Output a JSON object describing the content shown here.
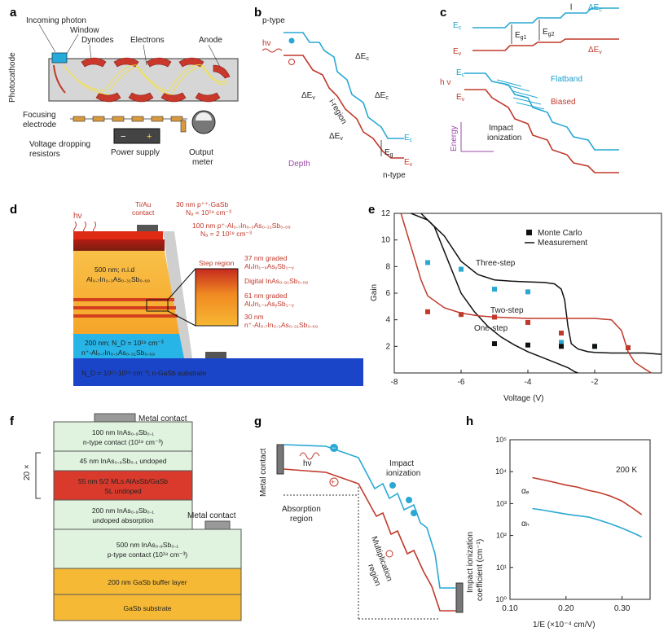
{
  "panels": {
    "a": {
      "label": "a",
      "photocathode": "Photocathode",
      "incoming_photon": "Incoming photon",
      "window": "Window",
      "dynodes": "Dynodes",
      "electrons": "Electrons",
      "anode": "Anode",
      "focusing_electrode": "Focusing electrode",
      "voltage_dropping_resistors": "Voltage dropping resistors",
      "power_supply": "Power supply",
      "output_meter": "Output meter",
      "minus": "−",
      "plus": "+"
    },
    "b": {
      "label": "b",
      "p_type": "p-type",
      "hv": "hν",
      "delta_ec": "ΔE",
      "delta_ec_sub": "c",
      "delta_ev": "ΔE",
      "delta_ev_sub": "v",
      "i_region": "i-region",
      "ec": "E",
      "ec_sub": "c",
      "ev": "E",
      "ev_sub": "v",
      "eg": "E",
      "eg_sub": "g",
      "depth": "Depth",
      "n_type": "n-type"
    },
    "c": {
      "label": "c",
      "ec": "E",
      "ec_sub": "c",
      "ev": "E",
      "ev_sub": "v",
      "eg1": "E",
      "eg1_sub": "g1",
      "eg2": "E",
      "eg2_sub": "g2",
      "l": "l",
      "delta_ec": "ΔE",
      "delta_ec_sub": "c",
      "delta_ev": "ΔE",
      "delta_ev_sub": "v",
      "hv": "h ν",
      "flatband": "Flatband",
      "biased": "Biased",
      "impact_ionization": "Impact ionization",
      "energy": "Energy"
    },
    "d": {
      "label": "d",
      "hv": "hν",
      "contact": "Ti/Au contact",
      "l1a": "30 nm p⁺⁺-GaSb",
      "l1b": "Nₐ = 10¹⁹ cm⁻³",
      "l2a": "100 nm p⁺-Al₀.₇In₀.₃As₀.₃₁Sb₀.₆₉",
      "l2b": "Nₐ = 2 10¹⁸ cm⁻³",
      "l3a": "500 nm; n.i.d",
      "l3b": "Al₀.₇In₀.₃As₀.₃₁Sb₀.₆₉",
      "step_region": "Step region",
      "s1a": "37 nm graded",
      "s1b": "AlₓIn₁₋ₓAsᵧSb₁₋ᵧ",
      "s2": "Digital InAs₀.₉₁Sb₀.₀₉",
      "s3a": "61 nm graded",
      "s3b": "AlₓIn₁₋ₓAsᵧSb₁₋ᵧ",
      "s4a": "30 nm",
      "s4b": "n⁺-Al₀.₇In₀.₃As₀.₃₁Sb₀.₆₉",
      "l4a": "200 nm; N_D = 10¹⁸ cm⁻³",
      "l4b": "n⁺-Al₀.₇In₀.₃As₀.₃₁Sb₀.₆₉",
      "l5": "N_D = 10¹⁷-10¹⁸ cm⁻³; n-GaSb substrate"
    },
    "f": {
      "label": "f",
      "metal_contact_top": "Metal contact",
      "metal_contact_side": "Metal contact",
      "repeat": "20 ×",
      "layers": [
        {
          "line1": "100 nm InAs₀.₉Sb₀.₁",
          "line2": "n-type contact (10¹⁸ cm⁻³)"
        },
        {
          "line1": "45 nm InAs₀.₉Sb₀.₁ undoped",
          "line2": ""
        },
        {
          "line1": "55 nm 5/2 MLs AlAsSb/GaSb",
          "line2": "SL undoped"
        },
        {
          "line1": "200 nm InAs₀.₉Sb₀.₁",
          "line2": "undoped absorption"
        },
        {
          "line1": "500 nm InAs₀.₉Sb₀.₁",
          "line2": "p-type contact (10¹⁸ cm⁻³)"
        },
        {
          "line1": "200 nm GaSb buffer layer",
          "line2": ""
        },
        {
          "line1": "GaSb substrate",
          "line2": ""
        }
      ]
    },
    "g": {
      "label": "g",
      "metal_contact": "Metal contact",
      "hv": "hν",
      "impact_ionization": "Impact ionization",
      "absorption_region": "Absorption region",
      "multiplication_region": "Multiplication region",
      "minus": "−",
      "plus": "+"
    }
  },
  "colors": {
    "cyan": "#29a8d3",
    "red": "#c0392b",
    "orange": "#f4a020",
    "layer_green": "#dff3df",
    "layer_red": "#d93a2b",
    "layer_gold": "#f6b935",
    "layer_blue": "#1b45c9",
    "layer_lightblue": "#27b4e6"
  },
  "chart_data": [
    {
      "panel": "e",
      "label": "e",
      "type": "line",
      "xlabel": "Voltage (V)",
      "ylabel": "Gain",
      "xlim": [
        -8,
        0
      ],
      "ylim": [
        0,
        12
      ],
      "xticks": [
        -8,
        -6,
        -4,
        -2
      ],
      "yticks": [
        2,
        4,
        6,
        8,
        10,
        12
      ],
      "legend": [
        "Monte Carlo",
        "Measurement"
      ],
      "legend_position": "top-right",
      "annotations": [
        "Three-step",
        "Two-step",
        "One-step"
      ],
      "series": [
        {
          "name": "Three-step",
          "kind": "measurement",
          "color": "#111111",
          "x": [
            -7.5,
            -7.0,
            -6.5,
            -6.0,
            -5.5,
            -5.0,
            -4.5,
            -4.0,
            -3.5,
            -3.2,
            -3.0,
            -2.9,
            -2.8,
            -2.7,
            -2.5,
            -2.2,
            -2.0,
            -1.5,
            -1.0,
            -0.5,
            0
          ],
          "y": [
            12,
            11.5,
            10.3,
            8.4,
            7.4,
            7.0,
            6.9,
            6.85,
            6.8,
            6.7,
            6.3,
            5.5,
            3.5,
            2.2,
            1.8,
            1.6,
            1.55,
            1.5,
            1.5,
            1.5,
            1.4
          ]
        },
        {
          "name": "Two-step",
          "kind": "measurement",
          "color": "#111111",
          "x": [
            -7.2,
            -6.8,
            -6.4,
            -6.0,
            -5.6,
            -5.2,
            -4.8,
            -4.4,
            -4.0,
            -3.6,
            -3.2,
            -2.8,
            -2.6,
            -2.5
          ],
          "y": [
            12,
            11.0,
            8.5,
            6.0,
            4.6,
            3.5,
            2.7,
            2.1,
            1.6,
            1.2,
            0.8,
            0.4,
            0.1,
            0
          ]
        },
        {
          "name": "One-step",
          "kind": "measurement",
          "color": "#c0392b",
          "x": [
            -7.8,
            -7.5,
            -7.2,
            -7.0,
            -6.5,
            -6.0,
            -5.5,
            -5.0,
            -4.5,
            -4.0,
            -3.5,
            -3.0,
            -2.0,
            -1.5,
            -1.2,
            -1.0,
            -0.8,
            -0.5,
            -0.3
          ],
          "y": [
            12,
            9.5,
            7.0,
            5.8,
            4.9,
            4.5,
            4.3,
            4.2,
            4.15,
            4.1,
            4.1,
            4.1,
            4.1,
            4.0,
            3.2,
            1.6,
            0.8,
            0.3,
            0
          ]
        },
        {
          "name": "Monte Carlo (three-step)",
          "kind": "montecarlo",
          "color": "#29a8d3",
          "x": [
            -7.0,
            -6.0,
            -5.0,
            -4.0,
            -3.0,
            -2.0
          ],
          "y": [
            8.3,
            7.8,
            6.3,
            6.1,
            2.3,
            2.0
          ]
        },
        {
          "name": "Monte Carlo (two-step)",
          "kind": "montecarlo",
          "color": "#111111",
          "x": [
            -5.0,
            -4.0,
            -3.0,
            -2.0,
            -1.0
          ],
          "y": [
            2.2,
            2.1,
            2.0,
            2.0,
            1.9
          ]
        },
        {
          "name": "Monte Carlo (one-step)",
          "kind": "montecarlo",
          "color": "#c0392b",
          "x": [
            -7.0,
            -6.0,
            -5.0,
            -4.0,
            -3.0,
            -1.0
          ],
          "y": [
            4.6,
            4.4,
            4.2,
            3.8,
            3.0,
            1.9
          ]
        }
      ]
    },
    {
      "panel": "h",
      "label": "h",
      "type": "line",
      "xlabel": "1/E (×10⁻⁴ cm/V)",
      "ylabel": "Impact ionization coefficient (cm⁻¹)",
      "yscale": "log",
      "xlim": [
        0.1,
        0.35
      ],
      "ylim": [
        1,
        100000
      ],
      "xticks": [
        0.1,
        0.2,
        0.3
      ],
      "xticklabels": [
        "0.10",
        "0.20",
        "0.30"
      ],
      "yticks": [
        1,
        10,
        100,
        1000,
        10000,
        100000
      ],
      "yticklabels": [
        "10⁰",
        "10¹",
        "10²",
        "10³",
        "10⁴",
        "10⁵"
      ],
      "annotation": "200 K",
      "series": [
        {
          "name": "αₑ",
          "color": "#c0392b",
          "x": [
            0.14,
            0.16,
            0.18,
            0.2,
            0.22,
            0.24,
            0.26,
            0.28,
            0.3,
            0.32,
            0.335
          ],
          "y": [
            6500,
            5500,
            4600,
            3800,
            3300,
            2600,
            2200,
            1700,
            1200,
            700,
            450
          ]
        },
        {
          "name": "αₕ",
          "color": "#29a8d3",
          "x": [
            0.14,
            0.16,
            0.18,
            0.2,
            0.22,
            0.24,
            0.26,
            0.28,
            0.3,
            0.32,
            0.335
          ],
          "y": [
            700,
            620,
            540,
            470,
            420,
            380,
            300,
            230,
            170,
            120,
            90
          ]
        }
      ]
    }
  ]
}
